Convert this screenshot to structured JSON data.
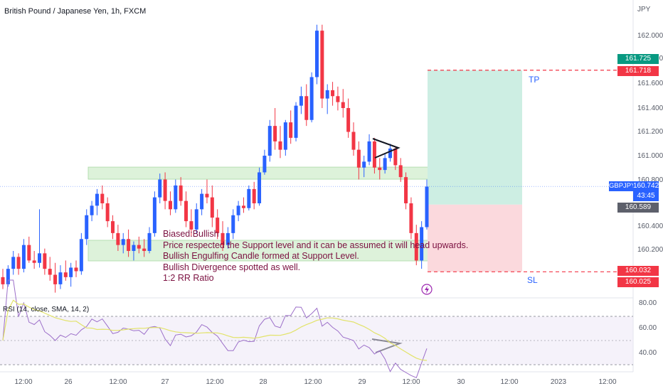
{
  "chart_title": "British Pound / Japanese Yen, 1h, FXCM",
  "currency": "JPY",
  "price_axis_labels": [
    "162.000",
    "161.800",
    "161.600",
    "161.400",
    "161.200",
    "161.000",
    "160.800",
    "160.400",
    "160.200"
  ],
  "price_tags": {
    "tp_price": "161.725",
    "tp_line": "161.718",
    "symbol": "GBPJPY",
    "last_price": "160.742",
    "countdown": "43:45",
    "entry": "160.589",
    "sl_price": "160.032",
    "sl_line": "160.025"
  },
  "time_axis_labels": [
    "12:00",
    "26",
    "12:00",
    "27",
    "12:00",
    "28",
    "12:00",
    "29",
    "12:00",
    "30",
    "12:00",
    "2023",
    "12:00"
  ],
  "annotations": {
    "tp": "TP",
    "sl": "SL",
    "note_lines": [
      "Biased:Bullish",
      "Price respected the Support level and it can be assumed it will head upwards.",
      "Bullish Engulfing Candle formed at Support Level.",
      "Bullish Divergence spotted as well.",
      "1:2 RR Ratio"
    ]
  },
  "rsi": {
    "label": "RSI (14, close, SMA, 14, 2)",
    "axis_labels": [
      "80.00",
      "60.00",
      "40.00"
    ]
  },
  "colors": {
    "up": "#2962ff",
    "down": "#f23645",
    "tp_zone": "#cdeee3",
    "sl_zone": "#fbd9dd",
    "sr_zone": "#d8f0d4",
    "rsi_line": "#9c6fc9",
    "rsi_sma": "#e2e36a",
    "note_text": "#7b1040"
  },
  "chart_data": {
    "type": "candlestick",
    "title": "British Pound / Japanese Yen, 1h, FXCM",
    "ylim": [
      159.78,
      162.12
    ],
    "y_unit": "JPY",
    "x_ticks": [
      "12:00",
      "26",
      "12:00",
      "27",
      "12:00",
      "28",
      "12:00",
      "29",
      "12:00",
      "30",
      "12:00",
      "2023",
      "12:00"
    ],
    "trade": {
      "tp": 161.718,
      "entry": 160.589,
      "sl": 160.025,
      "last": 160.742
    },
    "zones": [
      {
        "kind": "resistance",
        "low": 160.89,
        "high": 160.94
      },
      {
        "kind": "support",
        "low": 160.12,
        "high": 160.28
      }
    ],
    "ohlc": [
      [
        159.98,
        160.05,
        159.88,
        159.92
      ],
      [
        159.92,
        160.08,
        159.9,
        160.05
      ],
      [
        160.05,
        160.2,
        160.0,
        160.15
      ],
      [
        160.15,
        160.18,
        160.0,
        160.05
      ],
      [
        160.05,
        160.3,
        160.02,
        160.25
      ],
      [
        160.25,
        160.32,
        160.1,
        160.12
      ],
      [
        160.12,
        160.2,
        160.05,
        160.1
      ],
      [
        160.1,
        160.55,
        160.06,
        160.18
      ],
      [
        160.18,
        160.22,
        160.0,
        160.05
      ],
      [
        160.05,
        160.15,
        159.95,
        160.0
      ],
      [
        160.0,
        160.1,
        159.85,
        159.92
      ],
      [
        159.92,
        160.08,
        159.88,
        160.02
      ],
      [
        160.02,
        160.12,
        159.95,
        159.98
      ],
      [
        159.98,
        160.1,
        159.9,
        160.06
      ],
      [
        160.06,
        160.12,
        159.98,
        160.03
      ],
      [
        160.03,
        160.35,
        160.0,
        160.3
      ],
      [
        160.3,
        160.55,
        160.25,
        160.5
      ],
      [
        160.5,
        160.62,
        160.45,
        160.58
      ],
      [
        160.58,
        160.72,
        160.5,
        160.68
      ],
      [
        160.68,
        160.75,
        160.55,
        160.6
      ],
      [
        160.6,
        160.65,
        160.4,
        160.45
      ],
      [
        160.45,
        160.5,
        160.3,
        160.35
      ],
      [
        160.35,
        160.42,
        160.2,
        160.25
      ],
      [
        160.25,
        160.35,
        160.18,
        160.3
      ],
      [
        160.3,
        160.38,
        160.15,
        160.2
      ],
      [
        160.2,
        160.28,
        160.12,
        160.25
      ],
      [
        160.25,
        160.32,
        160.18,
        160.22
      ],
      [
        160.22,
        160.3,
        160.15,
        160.2
      ],
      [
        160.2,
        160.4,
        160.18,
        160.35
      ],
      [
        160.35,
        160.7,
        160.32,
        160.65
      ],
      [
        160.65,
        160.85,
        160.6,
        160.8
      ],
      [
        160.8,
        160.86,
        160.55,
        160.62
      ],
      [
        160.62,
        160.7,
        160.5,
        160.55
      ],
      [
        160.55,
        160.8,
        160.52,
        160.75
      ],
      [
        160.75,
        160.82,
        160.58,
        160.62
      ],
      [
        160.62,
        160.7,
        160.4,
        160.45
      ],
      [
        160.45,
        160.55,
        160.32,
        160.38
      ],
      [
        160.38,
        160.6,
        160.35,
        160.55
      ],
      [
        160.55,
        160.72,
        160.5,
        160.68
      ],
      [
        160.68,
        160.8,
        160.6,
        160.65
      ],
      [
        160.65,
        160.75,
        160.4,
        160.48
      ],
      [
        160.48,
        160.55,
        160.3,
        160.35
      ],
      [
        160.35,
        160.45,
        160.2,
        160.25
      ],
      [
        160.25,
        160.4,
        160.22,
        160.35
      ],
      [
        160.35,
        160.55,
        160.3,
        160.5
      ],
      [
        160.5,
        160.62,
        160.45,
        160.58
      ],
      [
        160.58,
        160.65,
        160.52,
        160.56
      ],
      [
        160.56,
        160.75,
        160.54,
        160.72
      ],
      [
        160.72,
        160.78,
        160.55,
        160.6
      ],
      [
        160.6,
        160.9,
        160.58,
        160.86
      ],
      [
        160.86,
        161.05,
        160.84,
        161.0
      ],
      [
        161.0,
        161.3,
        160.95,
        161.25
      ],
      [
        161.25,
        161.4,
        161.05,
        161.12
      ],
      [
        161.12,
        161.25,
        160.98,
        161.05
      ],
      [
        161.05,
        161.3,
        161.0,
        161.28
      ],
      [
        161.28,
        161.38,
        161.1,
        161.15
      ],
      [
        161.15,
        161.45,
        161.12,
        161.42
      ],
      [
        161.42,
        161.58,
        161.35,
        161.5
      ],
      [
        161.5,
        161.6,
        161.25,
        161.3
      ],
      [
        161.3,
        161.7,
        161.28,
        161.66
      ],
      [
        161.66,
        162.1,
        161.6,
        162.05
      ],
      [
        162.05,
        162.1,
        161.4,
        161.48
      ],
      [
        161.48,
        161.6,
        161.35,
        161.55
      ],
      [
        161.55,
        161.62,
        161.42,
        161.5
      ],
      [
        161.5,
        161.58,
        161.38,
        161.45
      ],
      [
        161.45,
        161.56,
        161.32,
        161.4
      ],
      [
        161.4,
        161.48,
        161.15,
        161.2
      ],
      [
        161.2,
        161.28,
        161.0,
        161.05
      ],
      [
        161.05,
        161.12,
        160.8,
        160.9
      ],
      [
        160.9,
        161.0,
        160.82,
        160.95
      ],
      [
        160.95,
        161.18,
        160.92,
        161.12
      ],
      [
        161.12,
        161.15,
        160.85,
        160.9
      ],
      [
        160.9,
        160.98,
        160.8,
        160.88
      ],
      [
        160.88,
        161.02,
        160.85,
        160.98
      ],
      [
        160.98,
        161.1,
        160.95,
        161.06
      ],
      [
        161.06,
        161.08,
        160.88,
        160.92
      ],
      [
        160.92,
        160.98,
        160.78,
        160.82
      ],
      [
        160.82,
        160.86,
        160.55,
        160.6
      ],
      [
        160.6,
        160.65,
        160.3,
        160.35
      ],
      [
        160.35,
        160.42,
        160.08,
        160.12
      ],
      [
        160.12,
        160.45,
        160.05,
        160.4
      ],
      [
        160.4,
        160.8,
        160.38,
        160.74
      ]
    ]
  }
}
